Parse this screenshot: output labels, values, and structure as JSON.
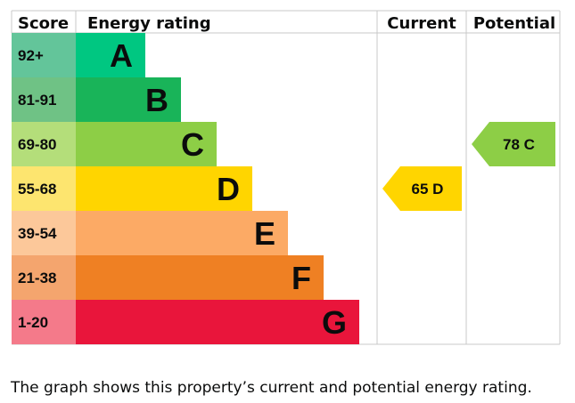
{
  "chart_data": {
    "type": "bar",
    "headers": {
      "score": "Score",
      "rating": "Energy rating",
      "current": "Current",
      "potential": "Potential"
    },
    "bands": [
      {
        "score": "92+",
        "letter": "A",
        "score_color": "#63c59a",
        "bar_color": "#00c781"
      },
      {
        "score": "81-91",
        "letter": "B",
        "score_color": "#6fc285",
        "bar_color": "#19b459"
      },
      {
        "score": "69-80",
        "letter": "C",
        "score_color": "#b4de7a",
        "bar_color": "#8dce46"
      },
      {
        "score": "55-68",
        "letter": "D",
        "score_color": "#fde56f",
        "bar_color": "#ffd500"
      },
      {
        "score": "39-54",
        "letter": "E",
        "score_color": "#fcc89a",
        "bar_color": "#fcaa65"
      },
      {
        "score": "21-38",
        "letter": "F",
        "score_color": "#f4a56e",
        "bar_color": "#ef8023"
      },
      {
        "score": "1-20",
        "letter": "G",
        "score_color": "#f47a8a",
        "bar_color": "#e9153b"
      }
    ],
    "current": {
      "value": 65,
      "letter": "D",
      "label": "65  D",
      "color": "#ffd500"
    },
    "potential": {
      "value": 78,
      "letter": "C",
      "label": "78  C",
      "color": "#8dce46"
    }
  },
  "caption": "The graph shows this property’s current and potential energy rating."
}
